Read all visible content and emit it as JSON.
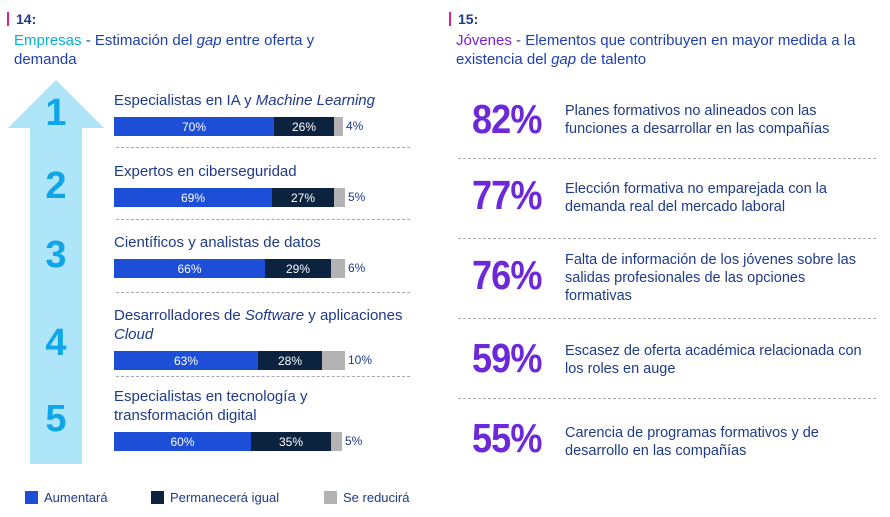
{
  "left": {
    "number": "14:",
    "title_lead": "Empresas",
    "title_sep": " - ",
    "title_a": "Estimación del ",
    "title_italic": "gap",
    "title_b": " entre oferta y demanda"
  },
  "right": {
    "number": "15:",
    "title_lead": "Jóvenes",
    "title_sep": " - ",
    "title_a": "Elementos que contribuyen en mayor medida a la existencia del ",
    "title_italic": "gap",
    "title_b": " de talento"
  },
  "chart_data": [
    {
      "type": "bar",
      "stacked": true,
      "orientation": "horizontal",
      "ranks": [
        "1",
        "2",
        "3",
        "4",
        "5"
      ],
      "categories": [
        "Especialistas en IA y Machine Learning",
        "Expertos en ciberseguridad",
        "Científicos y analistas de datos",
        "Desarrolladores de Software y aplicaciones Cloud",
        "Especialistas en tecnología y transformación digital"
      ],
      "series": [
        {
          "name": "Aumentará",
          "values": [
            70,
            69,
            66,
            63,
            60
          ],
          "color": "#1d4ed8"
        },
        {
          "name": "Permanecerá igual",
          "values": [
            26,
            27,
            29,
            28,
            35
          ],
          "color": "#0c2340"
        },
        {
          "name": "Se reducirá",
          "values": [
            4,
            5,
            6,
            10,
            5
          ],
          "color": "#b3b3b3"
        }
      ],
      "value_suffix": "%",
      "legend_position": "bottom",
      "xlim": [
        0,
        100
      ],
      "grid": false
    },
    {
      "type": "table",
      "rows": [
        {
          "value": 82,
          "label": "Planes formativos no alineados con las funciones a desarrollar en las compañías"
        },
        {
          "value": 77,
          "label": "Elección formativa no emparejada con la demanda real del mercado laboral"
        },
        {
          "value": 76,
          "label": "Falta de información de los jóvenes sobre las salidas profesionales de las opciones formativas"
        },
        {
          "value": 59,
          "label": "Escasez de oferta académica relacionada con los roles en auge"
        },
        {
          "value": 55,
          "label": "Carencia de programas formativos y de desarrollo en las compañías"
        }
      ],
      "value_suffix": "%"
    }
  ],
  "colors": {
    "arrow": "#aee5f8",
    "rank_number": "#0ea5e9",
    "percent_big": "#6d28d9",
    "accent_pink": "#e0218a"
  }
}
